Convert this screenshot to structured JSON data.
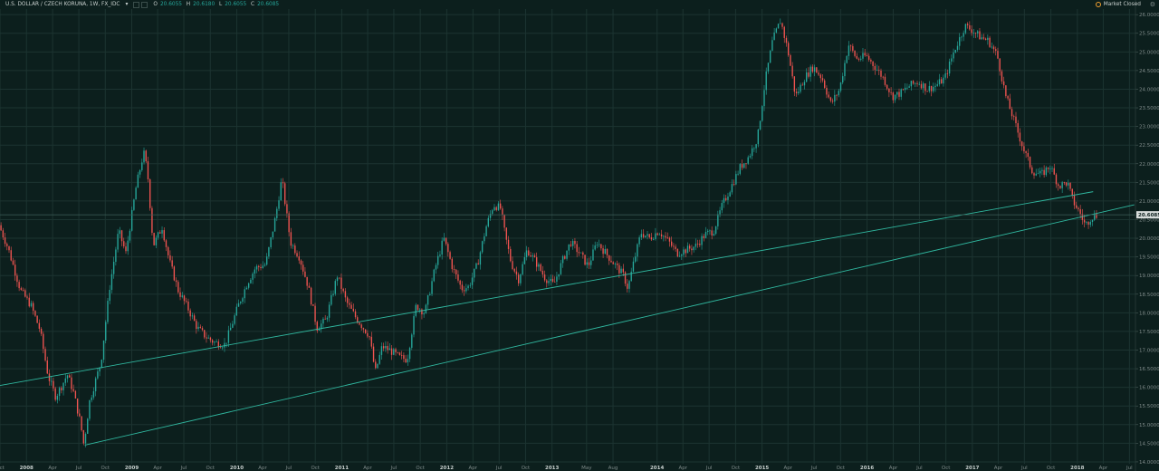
{
  "header": {
    "title": "U.S. DOLLAR / CZECH KORUNA, 1W, FX_IDC",
    "ohlc": {
      "o_label": "O",
      "o_value": "20.6055",
      "h_label": "H",
      "h_value": "20.6180",
      "l_label": "L",
      "l_value": "20.6055",
      "c_label": "C",
      "c_value": "20.6085"
    },
    "market_status": "Market Closed"
  },
  "colors": {
    "up": "#26a69a",
    "down": "#ef5350",
    "trendline": "#30b79f",
    "background": "#0c1f1d",
    "price_label": "#d7dcdb"
  },
  "chart_data": {
    "type": "candlestick",
    "symbol": "USDCZK",
    "interval": "1W",
    "x_range": [
      "2007-10-01",
      "2018-07-22"
    ],
    "y_range": [
      13.95,
      26.15
    ],
    "y_ticks": [
      "14.0000",
      "14.5000",
      "15.0000",
      "15.5000",
      "16.0000",
      "16.5000",
      "17.0000",
      "17.5000",
      "18.0000",
      "18.5000",
      "19.0000",
      "19.5000",
      "20.0000",
      "20.5000",
      "21.0000",
      "21.5000",
      "22.0000",
      "22.5000",
      "23.0000",
      "23.5000",
      "24.0000",
      "24.5000",
      "25.0000",
      "25.5000",
      "26.0000"
    ],
    "x_ticks": [
      {
        "label": "Oct",
        "date": "2007-10-01"
      },
      {
        "label": "2008",
        "date": "2008-01-01",
        "year": true
      },
      {
        "label": "Apr",
        "date": "2008-04-01"
      },
      {
        "label": "Jul",
        "date": "2008-07-01"
      },
      {
        "label": "Oct",
        "date": "2008-10-01"
      },
      {
        "label": "2009",
        "date": "2009-01-01",
        "year": true
      },
      {
        "label": "Apr",
        "date": "2009-04-01"
      },
      {
        "label": "Jul",
        "date": "2009-07-01"
      },
      {
        "label": "Oct",
        "date": "2009-10-01"
      },
      {
        "label": "2010",
        "date": "2010-01-01",
        "year": true
      },
      {
        "label": "Apr",
        "date": "2010-04-01"
      },
      {
        "label": "Jul",
        "date": "2010-07-01"
      },
      {
        "label": "Oct",
        "date": "2010-10-01"
      },
      {
        "label": "2011",
        "date": "2011-01-01",
        "year": true
      },
      {
        "label": "Apr",
        "date": "2011-04-01"
      },
      {
        "label": "Jul",
        "date": "2011-07-01"
      },
      {
        "label": "Oct",
        "date": "2011-10-01"
      },
      {
        "label": "2012",
        "date": "2012-01-01",
        "year": true
      },
      {
        "label": "Apr",
        "date": "2012-04-01"
      },
      {
        "label": "Jul",
        "date": "2012-07-01"
      },
      {
        "label": "Oct",
        "date": "2012-10-01"
      },
      {
        "label": "2013",
        "date": "2013-01-01",
        "year": true
      },
      {
        "label": "May",
        "date": "2013-05-01"
      },
      {
        "label": "Aug",
        "date": "2013-08-01"
      },
      {
        "label": "2014",
        "date": "2014-01-01",
        "year": true
      },
      {
        "label": "Apr",
        "date": "2014-04-01"
      },
      {
        "label": "Jul",
        "date": "2014-07-01"
      },
      {
        "label": "Oct",
        "date": "2014-10-01"
      },
      {
        "label": "2015",
        "date": "2015-01-01",
        "year": true
      },
      {
        "label": "Apr",
        "date": "2015-04-01"
      },
      {
        "label": "Jul",
        "date": "2015-07-01"
      },
      {
        "label": "Oct",
        "date": "2015-10-01"
      },
      {
        "label": "2016",
        "date": "2016-01-01",
        "year": true
      },
      {
        "label": "Apr",
        "date": "2016-04-01"
      },
      {
        "label": "Jul",
        "date": "2016-07-01"
      },
      {
        "label": "Oct",
        "date": "2016-10-01"
      },
      {
        "label": "2017",
        "date": "2017-01-01",
        "year": true
      },
      {
        "label": "Apr",
        "date": "2017-04-01"
      },
      {
        "label": "Jul",
        "date": "2017-07-01"
      },
      {
        "label": "Oct",
        "date": "2017-10-01"
      },
      {
        "label": "2018",
        "date": "2018-01-01",
        "year": true
      },
      {
        "label": "Apr",
        "date": "2018-04-01"
      },
      {
        "label": "Jul",
        "date": "2018-07-01"
      }
    ],
    "grid": true,
    "last_price": "20.6085",
    "price_line": 20.63,
    "candle_sample_weeks": 1,
    "anchors": [
      [
        "2007-10-01",
        20.35
      ],
      [
        "2007-11-01",
        19.75
      ],
      [
        "2007-12-15",
        18.6
      ],
      [
        "2008-01-20",
        18.2
      ],
      [
        "2008-02-20",
        17.55
      ],
      [
        "2008-03-20",
        16.3
      ],
      [
        "2008-04-15",
        15.75
      ],
      [
        "2008-05-10",
        16.1
      ],
      [
        "2008-05-25",
        16.35
      ],
      [
        "2008-06-15",
        15.9
      ],
      [
        "2008-07-10",
        15.05
      ],
      [
        "2008-07-22",
        14.45
      ],
      [
        "2008-08-10",
        15.6
      ],
      [
        "2008-09-20",
        16.7
      ],
      [
        "2008-10-20",
        18.7
      ],
      [
        "2008-11-20",
        20.2
      ],
      [
        "2008-12-15",
        19.6
      ],
      [
        "2009-01-20",
        21.4
      ],
      [
        "2009-02-15",
        22.3
      ],
      [
        "2009-02-28",
        21.8
      ],
      [
        "2009-03-20",
        19.8
      ],
      [
        "2009-04-20",
        20.3
      ],
      [
        "2009-05-15",
        19.4
      ],
      [
        "2009-06-15",
        18.6
      ],
      [
        "2009-07-20",
        18.1
      ],
      [
        "2009-08-20",
        17.6
      ],
      [
        "2009-09-20",
        17.35
      ],
      [
        "2009-10-20",
        17.2
      ],
      [
        "2009-11-25",
        17.15
      ],
      [
        "2010-01-10",
        18.2
      ],
      [
        "2010-02-10",
        18.8
      ],
      [
        "2010-03-10",
        19.2
      ],
      [
        "2010-04-15",
        19.3
      ],
      [
        "2010-05-20",
        20.6
      ],
      [
        "2010-06-10",
        21.6
      ],
      [
        "2010-07-10",
        19.9
      ],
      [
        "2010-08-10",
        19.5
      ],
      [
        "2010-09-10",
        18.7
      ],
      [
        "2010-10-10",
        17.6
      ],
      [
        "2010-11-10",
        17.8
      ],
      [
        "2010-12-20",
        19.0
      ],
      [
        "2011-01-20",
        18.3
      ],
      [
        "2011-02-20",
        17.9
      ],
      [
        "2011-03-20",
        17.6
      ],
      [
        "2011-04-10",
        17.4
      ],
      [
        "2011-05-01",
        16.4
      ],
      [
        "2011-05-25",
        17.1
      ],
      [
        "2011-06-20",
        17.0
      ],
      [
        "2011-07-25",
        16.8
      ],
      [
        "2011-08-20",
        16.75
      ],
      [
        "2011-09-20",
        18.2
      ],
      [
        "2011-10-20",
        18.0
      ],
      [
        "2011-11-25",
        19.2
      ],
      [
        "2011-12-25",
        20.0
      ],
      [
        "2012-01-25",
        19.2
      ],
      [
        "2012-02-25",
        18.65
      ],
      [
        "2012-03-20",
        18.7
      ],
      [
        "2012-04-20",
        19.3
      ],
      [
        "2012-05-20",
        20.3
      ],
      [
        "2012-06-15",
        20.9
      ],
      [
        "2012-07-10",
        20.8
      ],
      [
        "2012-07-25",
        20.1
      ],
      [
        "2012-08-15",
        19.35
      ],
      [
        "2012-09-10",
        18.9
      ],
      [
        "2012-10-10",
        19.7
      ],
      [
        "2012-11-10",
        19.35
      ],
      [
        "2012-12-10",
        18.95
      ],
      [
        "2013-01-10",
        18.75
      ],
      [
        "2013-02-10",
        19.4
      ],
      [
        "2013-03-10",
        19.9
      ],
      [
        "2013-04-10",
        19.6
      ],
      [
        "2013-05-10",
        19.25
      ],
      [
        "2013-06-10",
        19.9
      ],
      [
        "2013-07-10",
        19.6
      ],
      [
        "2013-08-10",
        19.3
      ],
      [
        "2013-09-10",
        19.0
      ],
      [
        "2013-09-25",
        18.65
      ],
      [
        "2013-10-15",
        19.35
      ],
      [
        "2013-11-10",
        20.15
      ],
      [
        "2013-12-10",
        20.0
      ],
      [
        "2014-01-10",
        20.2
      ],
      [
        "2014-02-15",
        19.9
      ],
      [
        "2014-03-15",
        19.6
      ],
      [
        "2014-04-20",
        19.7
      ],
      [
        "2014-05-20",
        19.8
      ],
      [
        "2014-06-20",
        20.1
      ],
      [
        "2014-07-20",
        20.2
      ],
      [
        "2014-08-20",
        20.9
      ],
      [
        "2014-09-20",
        21.4
      ],
      [
        "2014-10-20",
        21.9
      ],
      [
        "2014-11-20",
        22.2
      ],
      [
        "2014-12-20",
        22.7
      ],
      [
        "2015-01-15",
        24.2
      ],
      [
        "2015-02-10",
        25.3
      ],
      [
        "2015-03-10",
        25.85
      ],
      [
        "2015-04-05",
        25.0
      ],
      [
        "2015-05-01",
        23.8
      ],
      [
        "2015-06-01",
        24.3
      ],
      [
        "2015-07-01",
        24.6
      ],
      [
        "2015-08-01",
        24.3
      ],
      [
        "2015-09-01",
        23.6
      ],
      [
        "2015-10-01",
        24.0
      ],
      [
        "2015-11-01",
        25.2
      ],
      [
        "2015-12-01",
        24.8
      ],
      [
        "2016-01-01",
        24.9
      ],
      [
        "2016-02-01",
        24.6
      ],
      [
        "2016-03-01",
        24.3
      ],
      [
        "2016-04-01",
        23.8
      ],
      [
        "2016-05-01",
        23.9
      ],
      [
        "2016-06-01",
        24.1
      ],
      [
        "2016-07-01",
        24.2
      ],
      [
        "2016-08-01",
        24.0
      ],
      [
        "2016-09-01",
        24.1
      ],
      [
        "2016-10-01",
        24.3
      ],
      [
        "2016-11-01",
        25.0
      ],
      [
        "2016-12-10",
        25.7
      ],
      [
        "2017-01-01",
        25.6
      ],
      [
        "2017-02-01",
        25.4
      ],
      [
        "2017-03-01",
        25.3
      ],
      [
        "2017-04-01",
        24.9
      ],
      [
        "2017-05-01",
        23.8
      ],
      [
        "2017-06-01",
        23.1
      ],
      [
        "2017-07-01",
        22.4
      ],
      [
        "2017-08-01",
        21.8
      ],
      [
        "2017-09-01",
        21.7
      ],
      [
        "2017-10-01",
        21.95
      ],
      [
        "2017-11-01",
        21.4
      ],
      [
        "2017-12-01",
        21.5
      ],
      [
        "2017-12-20",
        21.0
      ],
      [
        "2018-01-15",
        20.65
      ],
      [
        "2018-02-01",
        20.35
      ],
      [
        "2018-02-20",
        20.55
      ],
      [
        "2018-03-05",
        20.61
      ]
    ],
    "trendlines": [
      {
        "name": "lower-support",
        "start": [
          "2008-07-22",
          14.45
        ],
        "end": [
          "2018-07-18",
          20.9
        ]
      },
      {
        "name": "upper-channel",
        "start": [
          "2007-10-01",
          16.05
        ],
        "end": [
          "2018-02-25",
          21.25
        ]
      }
    ]
  }
}
